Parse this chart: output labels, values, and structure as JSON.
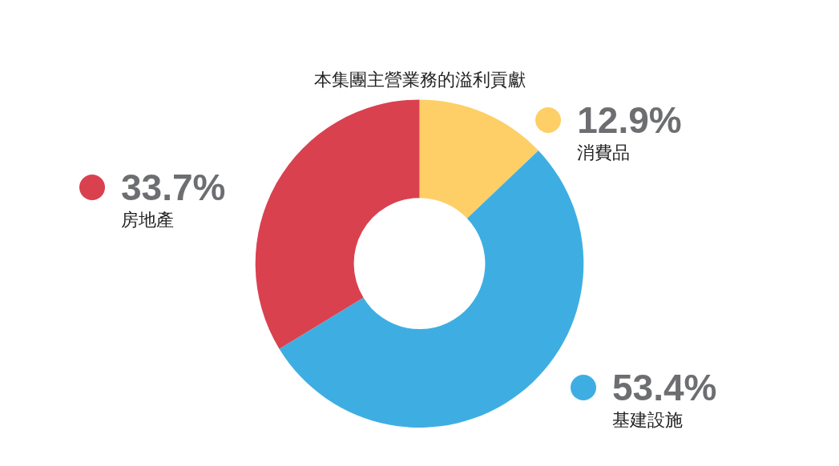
{
  "chart_data": {
    "type": "donut",
    "title": "本集團主營業務的溢利貢獻",
    "categories": [
      "消費品",
      "基建設施",
      "房地產"
    ],
    "values": [
      12.9,
      53.4,
      33.7
    ],
    "value_labels": [
      "12.9%",
      "53.4%",
      "33.7%"
    ],
    "colors": [
      "#fdcf66",
      "#3eaee2",
      "#d9414f"
    ],
    "legend": false
  }
}
